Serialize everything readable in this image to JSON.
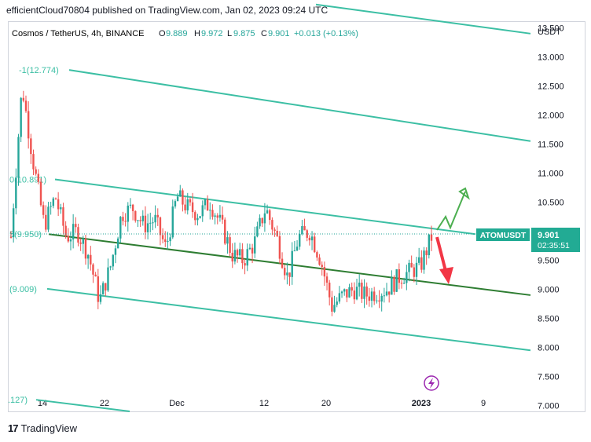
{
  "header": {
    "text": "efficientCloud70804 published on TradingView.com, Jan 02, 2023 09:24 UTC"
  },
  "footer": {
    "brand": "TradingView",
    "logo": "TV-logo-icon"
  },
  "legend": {
    "symbol": "Cosmos / TetherUS, 4h, BINANCE",
    "o_label": "O",
    "o": "9.889",
    "h_label": "H",
    "h": "9.972",
    "l_label": "L",
    "l": "9.875",
    "c_label": "C",
    "c": "9.901",
    "change": "+0.013 (+0.13%)"
  },
  "price_tag": {
    "ticker": "ATOMUSDT",
    "price": "9.901",
    "countdown": "02:35:51"
  },
  "fib_labels": [
    "-1(12.774)",
    "0(10.891)",
    "5(9.950)",
    "(9.009)",
    ".127)"
  ],
  "colors": {
    "up": "#26a69a",
    "down": "#ef5350",
    "channel": "#3cbfa4",
    "median": "#2e7d32",
    "arrow_up": "#4caf50",
    "arrow_down": "#f23645",
    "tag_bg": "#22ab94",
    "icon": "#9c27b0"
  },
  "chart_data": {
    "type": "candlestick",
    "title": "Cosmos / TetherUS, 4h, BINANCE",
    "ylabel": "USDT",
    "ylim": [
      6.9,
      13.6
    ],
    "y_ticks": [
      "13.500",
      "13.000",
      "12.500",
      "12.000",
      "11.500",
      "11.000",
      "10.500",
      "10.000",
      "9.500",
      "9.000",
      "8.500",
      "8.000",
      "7.500",
      "7.000"
    ],
    "x_ticks": [
      "14",
      "22",
      "Dec",
      "12",
      "20",
      "2023",
      "9"
    ],
    "last_price": 9.901,
    "fib_channel": [
      {
        "label": "-1",
        "value": 12.774
      },
      {
        "label": "0",
        "value": 10.891
      },
      {
        "label": "0.5",
        "value": 9.95
      },
      {
        "label": "1",
        "value": 9.009
      }
    ],
    "price_path": [
      [
        0,
        9.9
      ],
      [
        1,
        12.5
      ],
      [
        2,
        11.2
      ],
      [
        3,
        10.1
      ],
      [
        4,
        10.6
      ],
      [
        5,
        9.9
      ],
      [
        6,
        10.0
      ],
      [
        7,
        9.6
      ],
      [
        8,
        8.8
      ],
      [
        9,
        9.4
      ],
      [
        10,
        10.3
      ],
      [
        11,
        10.4
      ],
      [
        12,
        10.1
      ],
      [
        13,
        10.2
      ],
      [
        14,
        9.7
      ],
      [
        15,
        10.6
      ],
      [
        16,
        10.4
      ],
      [
        17,
        10.3
      ],
      [
        18,
        10.5
      ],
      [
        19,
        10.1
      ],
      [
        20,
        9.6
      ],
      [
        21,
        9.5
      ],
      [
        22,
        9.8
      ],
      [
        23,
        10.4
      ],
      [
        24,
        9.9
      ],
      [
        25,
        9.2
      ],
      [
        26,
        9.9
      ],
      [
        27,
        10.0
      ],
      [
        28,
        9.5
      ],
      [
        29,
        8.7
      ],
      [
        30,
        8.9
      ],
      [
        31,
        9.0
      ],
      [
        32,
        8.9
      ],
      [
        33,
        8.95
      ],
      [
        34,
        9.0
      ],
      [
        35,
        9.2
      ],
      [
        36,
        9.3
      ],
      [
        37,
        9.4
      ],
      [
        38,
        9.9
      ]
    ]
  }
}
